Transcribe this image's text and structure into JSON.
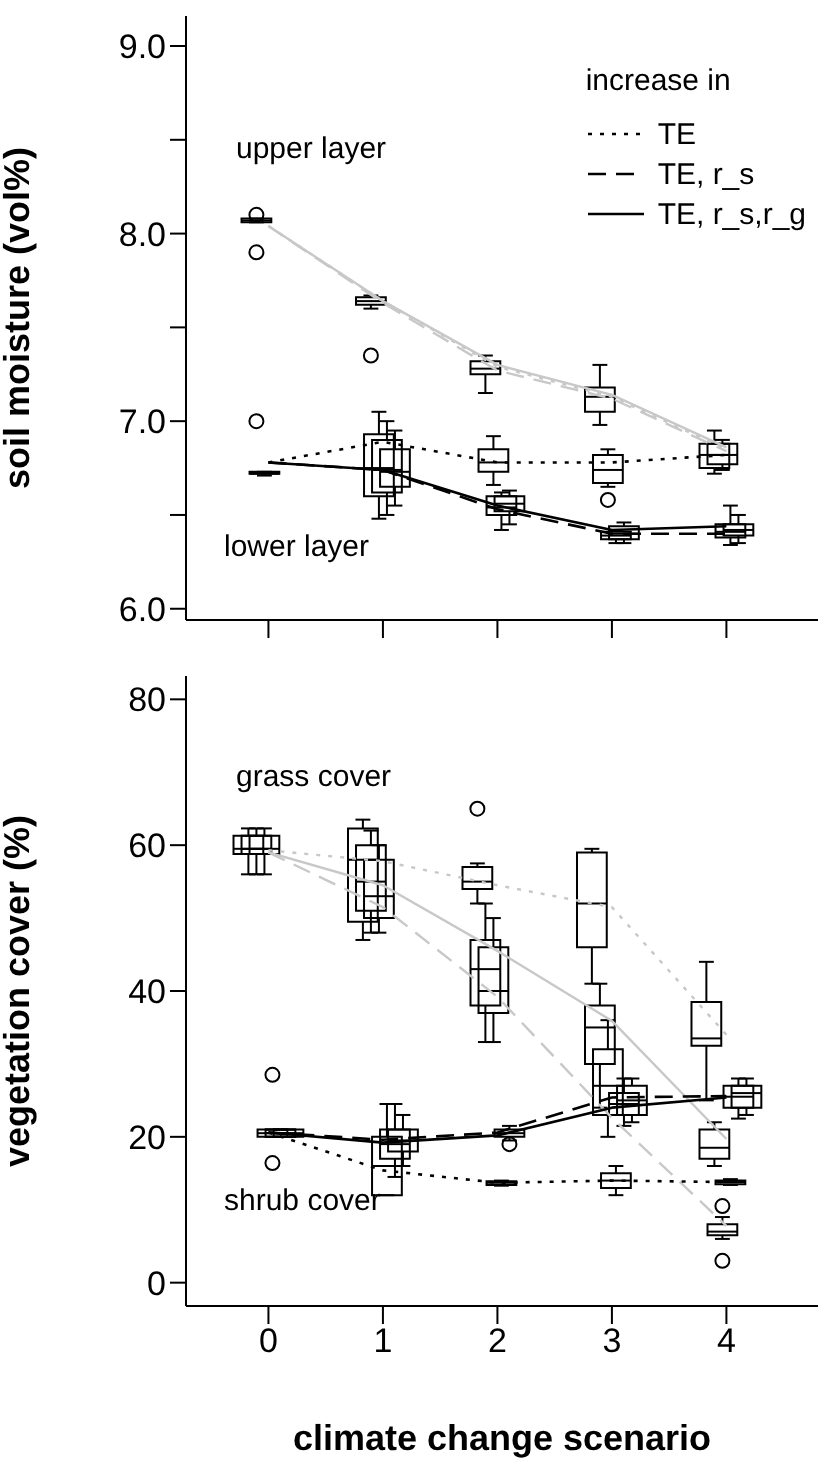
{
  "chart_data": [
    {
      "type": "line",
      "ylabel": "soil moisture (vol%)",
      "categories": [
        "0",
        "1",
        "2",
        "3",
        "4"
      ],
      "ylim": [
        5.94,
        9.16
      ],
      "yticks": [
        {
          "value": 6,
          "label": "6.0"
        },
        {
          "value": 6.5,
          "label": null
        },
        {
          "value": 7,
          "label": "7.0"
        },
        {
          "value": 7.5,
          "label": null
        },
        {
          "value": 8,
          "label": "8.0"
        },
        {
          "value": 8.5,
          "label": null
        },
        {
          "value": 9,
          "label": "9.0"
        }
      ],
      "tick_labels": "y",
      "legend": "top right",
      "legend_title": "increase in",
      "annotations": [
        "upper layer",
        "lower layer"
      ],
      "series": [
        {
          "type": "box",
          "color": "#000000",
          "boxes": [
            {
              "low": 8.06,
              "q1": 8.06,
              "median": 8.07,
              "q3": 8.08,
              "high": 8.08,
              "outliers": [
                8.1,
                7.9,
                7.0
              ]
            },
            {
              "low": 7.6,
              "q1": 7.62,
              "median": 7.64,
              "q3": 7.66,
              "high": 7.67,
              "outliers": [
                7.35
              ]
            },
            {
              "low": 7.15,
              "q1": 7.25,
              "median": 7.28,
              "q3": 7.32,
              "high": 7.35
            },
            {
              "low": 6.98,
              "q1": 7.05,
              "median": 7.13,
              "q3": 7.18,
              "high": 7.3
            },
            {
              "low": 6.72,
              "q1": 6.75,
              "median": 6.82,
              "q3": 6.88,
              "high": 6.95
            }
          ]
        },
        {
          "type": "box",
          "color": "#000000",
          "boxes": [
            {
              "low": 6.71,
              "q1": 6.72,
              "median": 6.72,
              "q3": 6.73,
              "high": 6.73
            },
            {
              "low": 6.48,
              "q1": 6.6,
              "median": 6.75,
              "q3": 6.93,
              "high": 7.05
            },
            {
              "low": 6.66,
              "q1": 6.73,
              "median": 6.78,
              "q3": 6.85,
              "high": 6.92
            },
            {
              "low": 6.65,
              "q1": 6.67,
              "median": 6.74,
              "q3": 6.82,
              "high": 6.85,
              "outliers": [
                6.58
              ]
            },
            {
              "low": 6.74,
              "q1": 6.77,
              "median": 6.82,
              "q3": 6.88,
              "high": 6.9
            }
          ]
        },
        {
          "type": "box",
          "color": "#000000",
          "boxes": [
            null,
            {
              "low": 6.5,
              "q1": 6.62,
              "median": 6.74,
              "q3": 6.9,
              "high": 7.0
            },
            {
              "low": 6.42,
              "q1": 6.5,
              "median": 6.54,
              "q3": 6.6,
              "high": 6.62
            },
            {
              "low": 6.35,
              "q1": 6.37,
              "median": 6.39,
              "q3": 6.41,
              "high": 6.42
            },
            {
              "low": 6.34,
              "q1": 6.38,
              "median": 6.41,
              "q3": 6.45,
              "high": 6.55
            }
          ]
        },
        {
          "type": "box",
          "color": "#000000",
          "boxes": [
            null,
            {
              "low": 6.55,
              "q1": 6.65,
              "median": 6.73,
              "q3": 6.85,
              "high": 6.95
            },
            {
              "low": 6.45,
              "q1": 6.52,
              "median": 6.56,
              "q3": 6.6,
              "high": 6.63
            },
            {
              "low": 6.35,
              "q1": 6.37,
              "median": 6.4,
              "q3": 6.44,
              "high": 6.46
            },
            {
              "low": 6.35,
              "q1": 6.39,
              "median": 6.42,
              "q3": 6.45,
              "high": 6.5
            }
          ]
        },
        {
          "color": "#c8c8c8",
          "line_style": "dotted",
          "values": [
            8.04,
            7.64,
            7.29,
            7.13,
            6.85
          ]
        },
        {
          "color": "#c8c8c8",
          "line_style": "dashed",
          "values": [
            8.04,
            7.63,
            7.27,
            7.12,
            6.84
          ]
        },
        {
          "color": "#c8c8c8",
          "line_style": "solid",
          "values": [
            8.04,
            7.64,
            7.3,
            7.14,
            6.86
          ]
        },
        {
          "name": "TE",
          "color": "#000000",
          "line_style": "dotted",
          "values": [
            6.78,
            6.89,
            6.78,
            6.78,
            6.82
          ]
        },
        {
          "name": "TE, r_s",
          "color": "#000000",
          "line_style": "dashed",
          "values": [
            6.78,
            6.74,
            6.53,
            6.4,
            6.4
          ]
        },
        {
          "name": "TE, r_s,r_g",
          "color": "#000000",
          "line_style": "solid",
          "values": [
            6.78,
            6.74,
            6.55,
            6.42,
            6.44
          ]
        }
      ]
    },
    {
      "type": "line",
      "ylabel": "vegetation cover (%)",
      "xlabel": "climate change scenario",
      "categories": [
        "0",
        "1",
        "2",
        "3",
        "4"
      ],
      "ylim": [
        -3.2,
        83.2
      ],
      "yticks": [
        0,
        20,
        40,
        60,
        80
      ],
      "annotations": [
        "grass cover",
        "shrub cover"
      ],
      "series": [
        {
          "type": "box",
          "color": "#000000",
          "boxes": [
            {
              "low": 56,
              "q1": 58.8,
              "median": 59.5,
              "q3": 61.3,
              "high": 62.3
            },
            {
              "low": 47,
              "q1": 49.5,
              "median": 58,
              "q3": 62.3,
              "high": 63.5
            },
            {
              "low": 52,
              "q1": 54,
              "median": 55,
              "q3": 57,
              "high": 57.5,
              "outliers": [
                65
              ]
            },
            {
              "low": 41,
              "q1": 46,
              "median": 52,
              "q3": 59,
              "high": 59.5
            },
            {
              "low": 25,
              "q1": 32.5,
              "median": 33.5,
              "q3": 38.5,
              "high": 44
            }
          ]
        },
        {
          "type": "box",
          "color": "#000000",
          "boxes": [
            {
              "low": 56,
              "q1": 58.8,
              "median": 59.5,
              "q3": 61.3,
              "high": 62.3
            },
            {
              "low": 48,
              "q1": 51,
              "median": 55,
              "q3": 60,
              "high": 62
            },
            {
              "low": 33,
              "q1": 38,
              "median": 43,
              "q3": 47,
              "high": 52
            },
            {
              "low": 24,
              "q1": 30,
              "median": 35,
              "q3": 38,
              "high": 41
            },
            {
              "low": 16,
              "q1": 17,
              "median": 18.5,
              "q3": 21,
              "high": 22
            }
          ]
        },
        {
          "type": "box",
          "color": "#000000",
          "boxes": [
            {
              "low": 56,
              "q1": 58.8,
              "median": 59.5,
              "q3": 61.3,
              "high": 62.3
            },
            {
              "low": 48,
              "q1": 50,
              "median": 53,
              "q3": 58,
              "high": 60
            },
            {
              "low": 33,
              "q1": 37,
              "median": 40,
              "q3": 46,
              "high": 50
            },
            {
              "low": 20,
              "q1": 23,
              "median": 27,
              "q3": 32,
              "high": 36
            },
            {
              "low": 6,
              "q1": 6.5,
              "median": 7,
              "q3": 8,
              "high": 9,
              "outliers": [
                10.5,
                3
              ]
            }
          ]
        },
        {
          "type": "box",
          "color": "#000000",
          "boxes": [
            {
              "low": 20,
              "q1": 20,
              "median": 20.5,
              "q3": 21,
              "high": 21,
              "outliers": [
                28.5,
                16.4
              ]
            },
            {
              "low": 12,
              "q1": 12,
              "median": 16,
              "q3": 20,
              "high": 24.5
            },
            {
              "low": 13.3,
              "q1": 13.4,
              "median": 13.7,
              "q3": 13.9,
              "high": 14
            },
            {
              "low": 12,
              "q1": 13,
              "median": 14,
              "q3": 15,
              "high": 16
            },
            {
              "low": 13.4,
              "q1": 13.5,
              "median": 13.8,
              "q3": 14,
              "high": 14.2
            }
          ]
        },
        {
          "type": "box",
          "color": "#000000",
          "boxes": [
            {
              "low": 20,
              "q1": 20,
              "median": 20.5,
              "q3": 21,
              "high": 21
            },
            {
              "low": 14.5,
              "q1": 17,
              "median": 19,
              "q3": 21,
              "high": 24.5
            },
            {
              "low": 19.5,
              "q1": 20,
              "median": 20.5,
              "q3": 21,
              "high": 21.5,
              "outliers": [
                19
              ]
            },
            {
              "low": 21.5,
              "q1": 23,
              "median": 24.5,
              "q3": 26,
              "high": 28
            },
            {
              "low": 22.5,
              "q1": 24,
              "median": 25.5,
              "q3": 27,
              "high": 28
            }
          ]
        },
        {
          "type": "box",
          "color": "#000000",
          "boxes": [
            {
              "low": 20,
              "q1": 20,
              "median": 20.5,
              "q3": 21,
              "high": 21
            },
            {
              "low": 16,
              "q1": 18,
              "median": 19.5,
              "q3": 21,
              "high": 23
            },
            null,
            {
              "low": 22,
              "q1": 23,
              "median": 25,
              "q3": 27,
              "high": 28
            },
            {
              "low": 23,
              "q1": 24,
              "median": 26,
              "q3": 27,
              "high": 28
            }
          ]
        },
        {
          "color": "#c8c8c8",
          "line_style": "dotted",
          "values": [
            59.3,
            57.8,
            54.5,
            51.5,
            34
          ]
        },
        {
          "color": "#c8c8c8",
          "line_style": "solid",
          "values": [
            59,
            54.5,
            45.5,
            35.9,
            19.7
          ]
        },
        {
          "color": "#c8c8c8",
          "line_style": "dashed",
          "values": [
            59,
            51.5,
            39.2,
            22.6,
            7.8
          ]
        },
        {
          "color": "#000000",
          "line_style": "dotted",
          "values": [
            20.6,
            15.4,
            13.7,
            14,
            13.8
          ]
        },
        {
          "color": "#000000",
          "line_style": "solid",
          "values": [
            20.6,
            19.2,
            20.2,
            24,
            25.4
          ]
        },
        {
          "color": "#000000",
          "line_style": "dashed",
          "values": [
            20.6,
            19.6,
            20.6,
            25.4,
            25.6
          ]
        }
      ]
    }
  ]
}
